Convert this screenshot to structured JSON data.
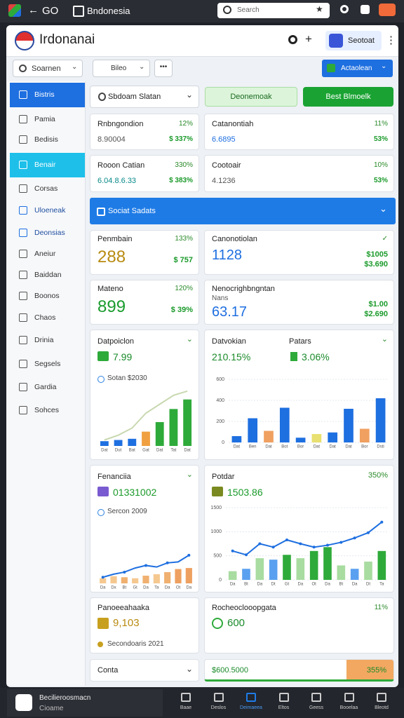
{
  "topbar": {
    "title": "GO",
    "tab": "Bndonesia",
    "search": "Search"
  },
  "header": {
    "title": "Irdonanai",
    "account": "Seotoat"
  },
  "toolbar": {
    "filter": "Soarnen",
    "select": "Bileo",
    "button": "Actaolean"
  },
  "sidebar": {
    "items": [
      "Bistris",
      "Pamia",
      "Bedisis",
      "Benair",
      "Corsas",
      "Uloeneak",
      "Deonsias",
      "Aneiur",
      "Baiddan",
      "Boonos",
      "Chaos",
      "Drinia",
      "Segsels",
      "Gardia",
      "Sohces"
    ]
  },
  "filters": {
    "dropdown": "Sbdoam Slatan",
    "button1": "Deonemoak",
    "button2": "Best Blmoelk"
  },
  "stats": [
    {
      "label": "Rnbngondion",
      "change": "12%",
      "value": "8.90004",
      "sub": "$ 337%"
    },
    {
      "label": "Catanontiah",
      "change": "11%",
      "value": "6.6895",
      "sub": "53%"
    },
    {
      "label": "Rooon Catian",
      "change": "330%",
      "value": "6.04.8.6.33",
      "sub": "$ 383%"
    },
    {
      "label": "Cootoair",
      "change": "10%",
      "value": "4.1236",
      "sub": "53%"
    }
  ],
  "section": {
    "title": "Sociat Sadats"
  },
  "big": [
    {
      "label": "Penmbain",
      "change": "133%",
      "value": "288",
      "sub": "$ 757"
    },
    {
      "label": "Canonotiolan",
      "change": "✓",
      "value": "1128",
      "sub": "$1005",
      "sub2": "$3.690"
    },
    {
      "label": "Mateno",
      "change": "120%",
      "value": "899",
      "sub": "$ 39%"
    },
    {
      "label": "Nenocrighbngntan",
      "note": "Nans",
      "value": "63.17",
      "sub": "$1.00",
      "sub2": "$2.690"
    }
  ],
  "charts": [
    {
      "type": "bar-line",
      "title": "Datpoiclon",
      "value": "7.99",
      "note": "Sotan $2030",
      "ylim": [
        0,
        100
      ],
      "categories": [
        "Dat",
        "Dut",
        "Bat",
        "Gat",
        "Dat",
        "Tat",
        "Dat"
      ],
      "series": [
        {
          "type": "bar",
          "colors": [
            "#1e6fe0",
            "#1e6fe0",
            "#1e6fe0",
            "#f0a040",
            "#2eaa3a",
            "#2eaa3a",
            "#2eaa3a"
          ],
          "values": [
            8,
            10,
            12,
            24,
            40,
            62,
            78
          ]
        },
        {
          "type": "line",
          "color": "#c8d8b0",
          "values": [
            10,
            18,
            30,
            55,
            70,
            85,
            92
          ]
        }
      ]
    },
    {
      "type": "bar",
      "title": "Datvokian",
      "title2": "Patars",
      "value": "210.15%",
      "value2": "3.06%",
      "ylim": [
        0,
        600
      ],
      "yticks": [
        0,
        200,
        400,
        600
      ],
      "categories": [
        "Dat",
        "Ben",
        "Dat",
        "Bot",
        "Bor",
        "Dat",
        "Dat",
        "Dat",
        "Bor",
        "Dsti"
      ],
      "series": [
        {
          "type": "bar",
          "colors": [
            "#1e6fe0",
            "#1e6fe0",
            "#f0a060",
            "#1e6fe0",
            "#1e6fe0",
            "#e8e070",
            "#1e6fe0",
            "#1e6fe0",
            "#f0a060",
            "#1e6fe0"
          ],
          "values": [
            60,
            230,
            110,
            330,
            45,
            80,
            95,
            320,
            130,
            420
          ]
        }
      ]
    },
    {
      "type": "bar-line",
      "title": "Fenanciia",
      "value": "01331002",
      "note": "Sercon 2009",
      "ylim": [
        0,
        100
      ],
      "categories": [
        "Da",
        "Dx",
        "Bt",
        "Gt",
        "Da",
        "Ta",
        "Da",
        "Ot",
        "Da"
      ],
      "series": [
        {
          "type": "bar",
          "colors": [
            "#f5c890",
            "#f5c890",
            "#f0b070",
            "#f5c890",
            "#f0b070",
            "#f5c890",
            "#f0b070",
            "#eea060",
            "#eea060"
          ],
          "values": [
            10,
            14,
            12,
            10,
            15,
            18,
            22,
            28,
            30
          ]
        },
        {
          "type": "line",
          "color": "#1e6fe0",
          "values": [
            12,
            18,
            22,
            30,
            35,
            32,
            40,
            42,
            55
          ]
        }
      ]
    },
    {
      "type": "bar-line",
      "title": "Potdar",
      "value": "1503.86",
      "change": "350%",
      "ylim": [
        0,
        1500
      ],
      "yticks": [
        0,
        500,
        1000,
        1500
      ],
      "categories": [
        "Da",
        "Bt",
        "Da",
        "Dt",
        "Gt",
        "Da",
        "Ot",
        "Da",
        "Bt",
        "Da",
        "Dt",
        "Ta"
      ],
      "series": [
        {
          "type": "bar",
          "colors": [
            "#a8dca0",
            "#5aa0f0",
            "#a8dca0",
            "#5aa0f0",
            "#2eaa3a",
            "#a8dca0",
            "#2eaa3a",
            "#2eaa3a",
            "#a8dca0",
            "#5aa0f0",
            "#a8dca0",
            "#2eaa3a"
          ],
          "values": [
            180,
            230,
            450,
            420,
            520,
            450,
            600,
            680,
            300,
            230,
            380,
            600
          ]
        },
        {
          "type": "line",
          "color": "#1e6fe0",
          "values": [
            600,
            520,
            750,
            680,
            830,
            750,
            680,
            720,
            780,
            870,
            980,
            1200
          ]
        }
      ]
    }
  ],
  "bottom": [
    {
      "label": "Panoeeahaaka",
      "value": "9,103",
      "note": "Secondoaris 2021"
    },
    {
      "label": "Rocheoclooopgata",
      "change": "11%",
      "value": "600"
    }
  ],
  "footer": [
    {
      "label": "Conta"
    },
    {
      "value": "$600.5000",
      "change": "355%"
    }
  ],
  "nav": {
    "title": "Becilieroosmacn",
    "subtitle": "Cioame",
    "tabs": [
      "Baae",
      "Deslos",
      "Deimaeea",
      "Eltos",
      "Geess",
      "Booelaa",
      "Bleotd"
    ]
  }
}
